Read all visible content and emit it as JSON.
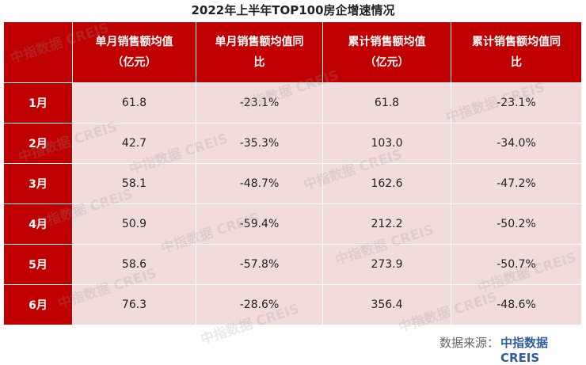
{
  "title": "2022年上半年TOP100房企增速情况",
  "table": {
    "header": [
      "单月销售额均值（亿元）",
      "单月销售额均值同比",
      "累计销售额均值（亿元）",
      "累计销售额均值同比"
    ],
    "rows": [
      [
        "1月",
        "61.8",
        "-23.1%",
        "61.8",
        "-23.1%"
      ],
      [
        "2月",
        "42.7",
        "-35.3%",
        "103.0",
        "-34.0%"
      ],
      [
        "3月",
        "58.1",
        "-48.7%",
        "162.6",
        "-47.2%"
      ],
      [
        "4月",
        "50.9",
        "-59.4%",
        "212.2",
        "-50.2%"
      ],
      [
        "5月",
        "58.6",
        "-57.8%",
        "273.9",
        "-50.7%"
      ],
      [
        "6月",
        "76.3",
        "-28.6%",
        "356.4",
        "-48.6%"
      ]
    ]
  },
  "watermark": "中指数据 CREIS",
  "source": {
    "label": "数据来源：",
    "name": "中指数据CREIS"
  }
}
